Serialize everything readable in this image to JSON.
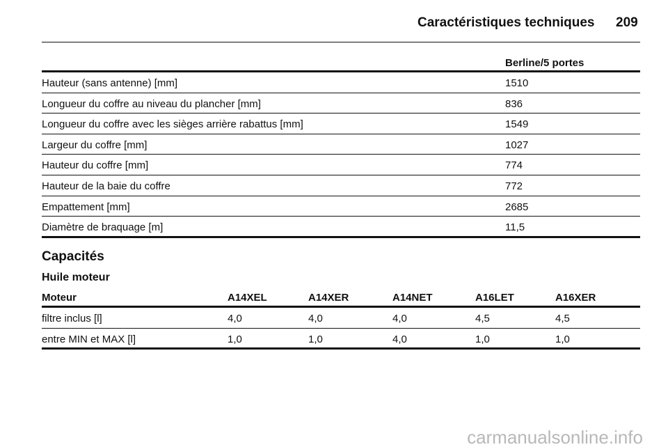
{
  "header": {
    "title": "Caractéristiques techniques",
    "page": "209"
  },
  "dimensions": {
    "columns": [
      "Berline/5 portes"
    ],
    "rows": [
      [
        "Hauteur (sans antenne) [mm]",
        "1510"
      ],
      [
        "Longueur du coffre au niveau du plancher [mm]",
        "836"
      ],
      [
        "Longueur du coffre avec les sièges arrière rabattus [mm]",
        "1549"
      ],
      [
        "Largeur du coffre [mm]",
        "1027"
      ],
      [
        "Hauteur du coffre [mm]",
        "774"
      ],
      [
        "Hauteur de la baie du coffre",
        "772"
      ],
      [
        "Empattement [mm]",
        "2685"
      ],
      [
        "Diamètre de braquage [m]",
        "11,5"
      ]
    ]
  },
  "section": {
    "title": "Capacités",
    "subtitle": "Huile moteur"
  },
  "oil": {
    "columns": [
      "Moteur",
      "A14XEL",
      "A14XER",
      "A14NET",
      "A16LET",
      "A16XER"
    ],
    "rows": [
      [
        "filtre inclus [l]",
        "4,0",
        "4,0",
        "4,0",
        "4,5",
        "4,5"
      ],
      [
        "entre MIN et MAX [l]",
        "1,0",
        "1,0",
        "4,0",
        "1,0",
        "1,0"
      ]
    ]
  },
  "watermark": "carmanualsonline.info"
}
